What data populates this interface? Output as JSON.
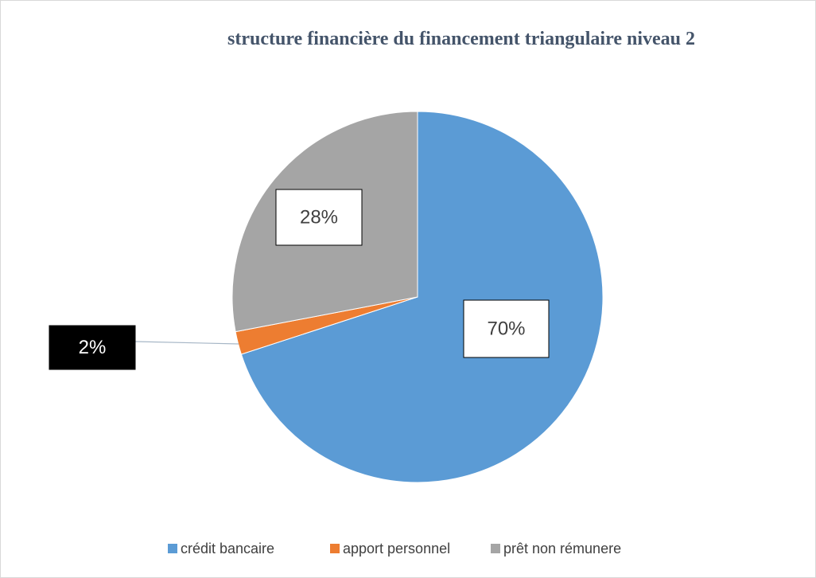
{
  "chart_data": {
    "type": "pie",
    "title": "structure financière du financement triangulaire niveau 2",
    "categories": [
      "crédit bancaire",
      "apport personnel",
      "prêt non rémunere"
    ],
    "values": [
      70,
      2,
      28
    ],
    "value_labels": [
      "70%",
      "2%",
      "28%"
    ],
    "colors": [
      "#5b9bd5",
      "#ed7d31",
      "#a5a5a5"
    ],
    "legend": "bottom"
  }
}
